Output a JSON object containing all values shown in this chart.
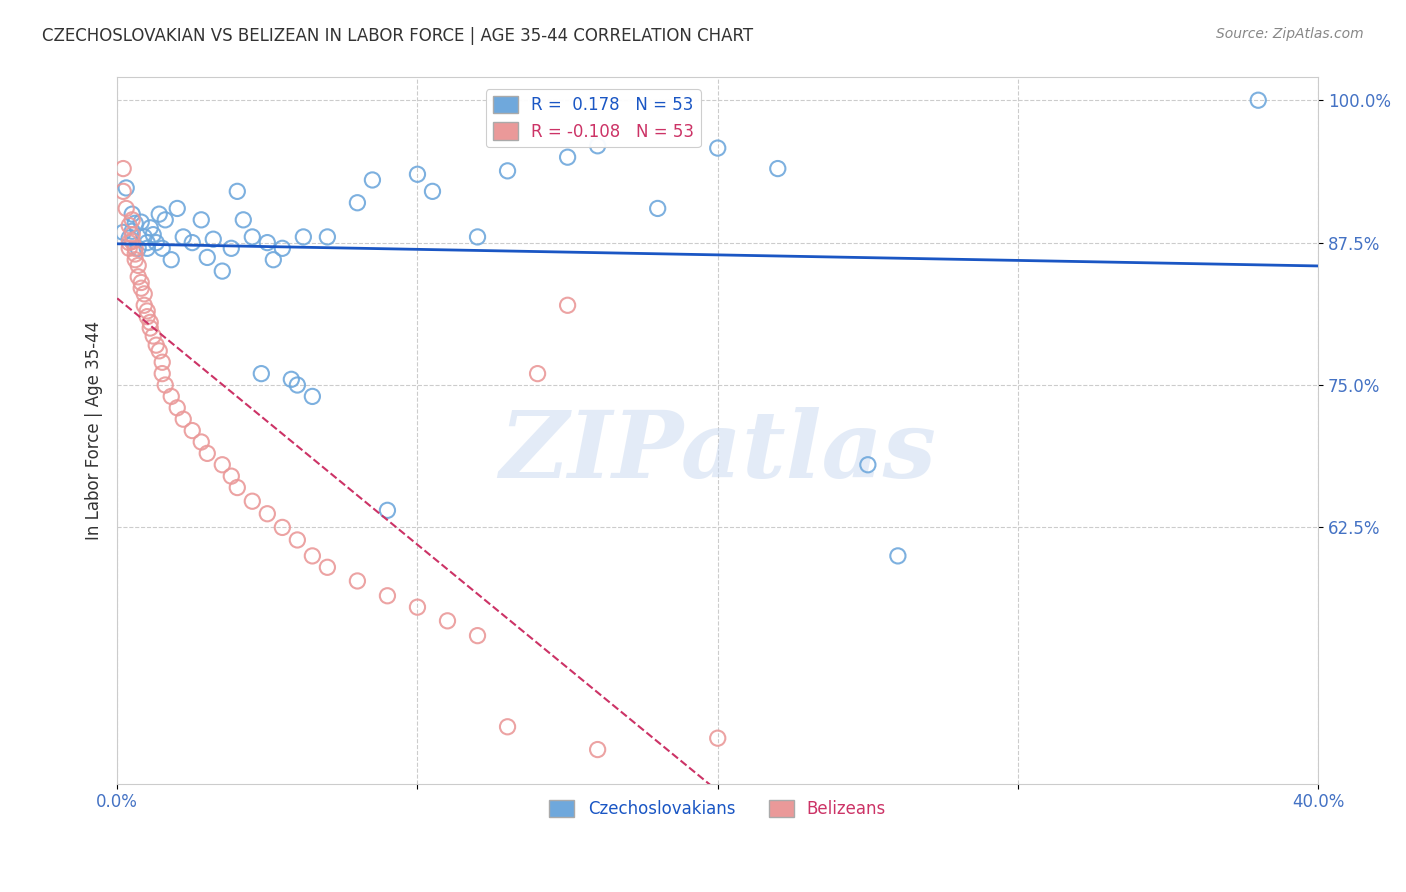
{
  "title": "CZECHOSLOVAKIAN VS BELIZEAN IN LABOR FORCE | AGE 35-44 CORRELATION CHART",
  "source": "Source: ZipAtlas.com",
  "ylabel": "In Labor Force | Age 35-44",
  "watermark": "ZIPatlas",
  "xlim": [
    0.0,
    0.4
  ],
  "ylim": [
    0.4,
    1.02
  ],
  "xticks": [
    0.0,
    0.1,
    0.2,
    0.3,
    0.4
  ],
  "xtick_labels": [
    "0.0%",
    "",
    "",
    "",
    "40.0%"
  ],
  "ytick_positions": [
    1.0,
    0.875,
    0.75,
    0.625
  ],
  "ytick_labels": [
    "100.0%",
    "87.5%",
    "75.0%",
    "62.5%"
  ],
  "legend_r_blue": "0.178",
  "legend_n_blue": "53",
  "legend_r_pink": "-0.108",
  "legend_n_pink": "53",
  "blue_color": "#6fa8dc",
  "pink_color": "#ea9999",
  "trend_blue_color": "#1a56c4",
  "trend_pink_color": "#cc3366",
  "blue_scatter": [
    [
      0.002,
      0.884
    ],
    [
      0.003,
      0.923
    ],
    [
      0.004,
      0.879
    ],
    [
      0.005,
      0.885
    ],
    [
      0.005,
      0.9
    ],
    [
      0.006,
      0.892
    ],
    [
      0.007,
      0.87
    ],
    [
      0.008,
      0.893
    ],
    [
      0.009,
      0.88
    ],
    [
      0.01,
      0.875
    ],
    [
      0.01,
      0.87
    ],
    [
      0.011,
      0.888
    ],
    [
      0.012,
      0.882
    ],
    [
      0.013,
      0.875
    ],
    [
      0.014,
      0.9
    ],
    [
      0.015,
      0.87
    ],
    [
      0.016,
      0.895
    ],
    [
      0.018,
      0.86
    ],
    [
      0.02,
      0.905
    ],
    [
      0.022,
      0.88
    ],
    [
      0.025,
      0.875
    ],
    [
      0.028,
      0.895
    ],
    [
      0.03,
      0.862
    ],
    [
      0.032,
      0.878
    ],
    [
      0.035,
      0.85
    ],
    [
      0.038,
      0.87
    ],
    [
      0.04,
      0.92
    ],
    [
      0.042,
      0.895
    ],
    [
      0.045,
      0.88
    ],
    [
      0.048,
      0.76
    ],
    [
      0.05,
      0.875
    ],
    [
      0.052,
      0.86
    ],
    [
      0.055,
      0.87
    ],
    [
      0.058,
      0.755
    ],
    [
      0.06,
      0.75
    ],
    [
      0.062,
      0.88
    ],
    [
      0.065,
      0.74
    ],
    [
      0.07,
      0.88
    ],
    [
      0.08,
      0.91
    ],
    [
      0.085,
      0.93
    ],
    [
      0.09,
      0.64
    ],
    [
      0.1,
      0.935
    ],
    [
      0.105,
      0.92
    ],
    [
      0.12,
      0.88
    ],
    [
      0.13,
      0.938
    ],
    [
      0.15,
      0.95
    ],
    [
      0.16,
      0.96
    ],
    [
      0.18,
      0.905
    ],
    [
      0.2,
      0.958
    ],
    [
      0.22,
      0.94
    ],
    [
      0.25,
      0.68
    ],
    [
      0.26,
      0.6
    ],
    [
      0.38,
      1.0
    ]
  ],
  "pink_scatter": [
    [
      0.002,
      0.94
    ],
    [
      0.002,
      0.92
    ],
    [
      0.003,
      0.905
    ],
    [
      0.004,
      0.89
    ],
    [
      0.004,
      0.875
    ],
    [
      0.004,
      0.87
    ],
    [
      0.005,
      0.895
    ],
    [
      0.005,
      0.882
    ],
    [
      0.005,
      0.876
    ],
    [
      0.006,
      0.87
    ],
    [
      0.006,
      0.865
    ],
    [
      0.006,
      0.86
    ],
    [
      0.007,
      0.855
    ],
    [
      0.007,
      0.845
    ],
    [
      0.008,
      0.84
    ],
    [
      0.008,
      0.835
    ],
    [
      0.009,
      0.83
    ],
    [
      0.009,
      0.82
    ],
    [
      0.01,
      0.815
    ],
    [
      0.01,
      0.81
    ],
    [
      0.011,
      0.805
    ],
    [
      0.011,
      0.8
    ],
    [
      0.012,
      0.793
    ],
    [
      0.013,
      0.785
    ],
    [
      0.014,
      0.78
    ],
    [
      0.015,
      0.77
    ],
    [
      0.015,
      0.76
    ],
    [
      0.016,
      0.75
    ],
    [
      0.018,
      0.74
    ],
    [
      0.02,
      0.73
    ],
    [
      0.022,
      0.72
    ],
    [
      0.025,
      0.71
    ],
    [
      0.028,
      0.7
    ],
    [
      0.03,
      0.69
    ],
    [
      0.035,
      0.68
    ],
    [
      0.038,
      0.67
    ],
    [
      0.04,
      0.66
    ],
    [
      0.045,
      0.648
    ],
    [
      0.05,
      0.637
    ],
    [
      0.055,
      0.625
    ],
    [
      0.06,
      0.614
    ],
    [
      0.065,
      0.6
    ],
    [
      0.07,
      0.59
    ],
    [
      0.08,
      0.578
    ],
    [
      0.09,
      0.565
    ],
    [
      0.1,
      0.555
    ],
    [
      0.11,
      0.543
    ],
    [
      0.12,
      0.53
    ],
    [
      0.13,
      0.45
    ],
    [
      0.14,
      0.76
    ],
    [
      0.15,
      0.82
    ],
    [
      0.16,
      0.43
    ],
    [
      0.2,
      0.44
    ]
  ],
  "bg_color": "#ffffff",
  "grid_color": "#cccccc",
  "axis_color": "#cccccc",
  "title_color": "#333333",
  "tick_color": "#4472c4",
  "ylabel_color": "#333333",
  "source_color": "#888888"
}
